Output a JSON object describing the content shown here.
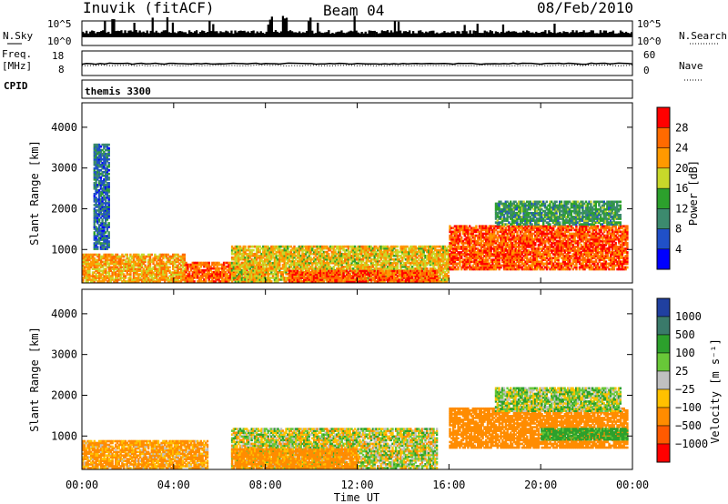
{
  "header": {
    "station": "Inuvik (fitACF)",
    "beam": "Beam 04",
    "date": "08/Feb/2010"
  },
  "noise_panel": {
    "left_label": "N.Sky",
    "right_label": "N.Search",
    "left_ticks": [
      "10^5",
      "10^0"
    ],
    "right_ticks": [
      "10^5",
      "10^0"
    ]
  },
  "freq_panel": {
    "left_label_1": "Freq.",
    "left_label_2": "[MHz]",
    "right_label": "Nave",
    "left_ticks": [
      "18",
      "8"
    ],
    "right_ticks": [
      "60",
      "0"
    ]
  },
  "cpid_panel": {
    "label": "CPID",
    "value": "themis 3300"
  },
  "x_axis": {
    "label": "Time UT",
    "ticks": [
      "00:00",
      "04:00",
      "08:00",
      "12:00",
      "16:00",
      "20:00",
      "00:00"
    ]
  },
  "y_axis": {
    "label": "Slant Range [km]",
    "ticks": [
      "1000",
      "2000",
      "3000",
      "4000"
    ]
  },
  "power_colorbar": {
    "label": "Power [dB]",
    "ticks": [
      "4",
      "8",
      "12",
      "16",
      "20",
      "24",
      "28"
    ]
  },
  "velocity_colorbar": {
    "label": "Velocity [m s⁻¹]",
    "ticks": [
      "1000",
      "500",
      "100",
      "25",
      "−25",
      "−100",
      "−500",
      "−1000"
    ]
  },
  "colors": {
    "power": [
      "#0000ff",
      "#2050c8",
      "#3c8a6e",
      "#2ca02c",
      "#c8d82a",
      "#ff9900",
      "#ff6a00",
      "#ff0000"
    ],
    "velocity": [
      "#2040a0",
      "#3a7a6a",
      "#2ca02c",
      "#68c838",
      "#c0c0c0",
      "#ffc100",
      "#ff8c00",
      "#ff5a00",
      "#ff0000"
    ]
  },
  "chart_data": [
    {
      "type": "heatmap",
      "title": "Power [dB]",
      "xlabel": "Time UT",
      "ylabel": "Slant Range [km]",
      "x_unit": "hours UT",
      "xlim": [
        0,
        24
      ],
      "ylim": [
        180,
        4600
      ],
      "clim": [
        0,
        32
      ],
      "regions": [
        {
          "t0": 0.0,
          "t1": 4.5,
          "r0": 200,
          "r1": 900,
          "value": 22
        },
        {
          "t0": 4.5,
          "t1": 8.0,
          "r0": 200,
          "r1": 700,
          "value": 26
        },
        {
          "t0": 6.5,
          "t1": 16.0,
          "r0": 200,
          "r1": 1100,
          "value": 20
        },
        {
          "t0": 9.0,
          "t1": 15.5,
          "r0": 200,
          "r1": 500,
          "value": 27
        },
        {
          "t0": 16.0,
          "t1": 23.8,
          "r0": 500,
          "r1": 1600,
          "value": 27
        },
        {
          "t0": 18.0,
          "t1": 23.5,
          "r0": 1600,
          "r1": 2200,
          "value": 12
        },
        {
          "t0": 0.5,
          "t1": 1.2,
          "r0": 1000,
          "r1": 3600,
          "value": 8
        }
      ]
    },
    {
      "type": "heatmap",
      "title": "Velocity [m s⁻¹]",
      "xlabel": "Time UT",
      "ylabel": "Slant Range [km]",
      "x_unit": "hours UT",
      "xlim": [
        0,
        24
      ],
      "ylim": [
        180,
        4600
      ],
      "levels": [
        1000,
        500,
        100,
        25,
        -25,
        -100,
        -500,
        -1000
      ],
      "regions": [
        {
          "t0": 0.0,
          "t1": 5.5,
          "r0": 200,
          "r1": 900,
          "value": -150
        },
        {
          "t0": 6.5,
          "t1": 15.5,
          "r0": 200,
          "r1": 1200,
          "value": 0
        },
        {
          "t0": 6.5,
          "t1": 12.0,
          "r0": 200,
          "r1": 700,
          "value": -200
        },
        {
          "t0": 16.0,
          "t1": 23.8,
          "r0": 700,
          "r1": 1700,
          "value": -300
        },
        {
          "t0": 20.0,
          "t1": 23.8,
          "r0": 900,
          "r1": 1200,
          "value": 200
        },
        {
          "t0": 18.0,
          "t1": 23.5,
          "r0": 1600,
          "r1": 2200,
          "value": 50
        }
      ]
    }
  ]
}
